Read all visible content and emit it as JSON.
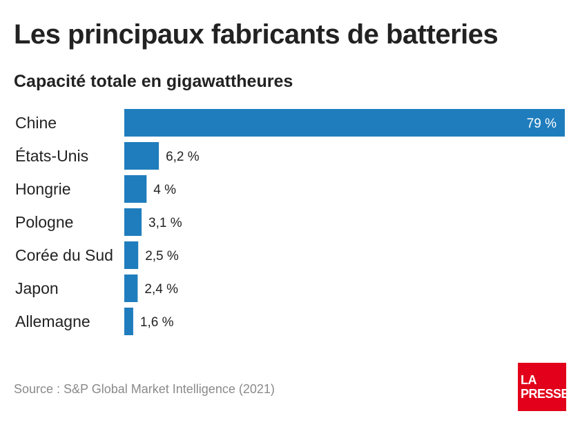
{
  "title": "Les principaux fabricants de batteries",
  "subtitle": "Capacité totale en gigawattheures",
  "source": "Source : S&P Global Market Intelligence (2021)",
  "logo": {
    "line1": "LA",
    "line2": "PRESSE",
    "color": "#E2001A"
  },
  "colors": {
    "bar": "#1F7DBD"
  },
  "chart_data": {
    "type": "bar",
    "orientation": "horizontal",
    "categories": [
      "Chine",
      "États-Unis",
      "Hongrie",
      "Pologne",
      "Corée du Sud",
      "Japon",
      "Allemagne"
    ],
    "values": [
      79,
      6.2,
      4,
      3.1,
      2.5,
      2.4,
      1.6
    ],
    "value_labels": [
      "79 %",
      "6,2 %",
      "4 %",
      "3,1 %",
      "2,5 %",
      "2,4 %",
      "1,6 %"
    ],
    "xlim": [
      0,
      79
    ],
    "grid": false,
    "legend": "none"
  }
}
